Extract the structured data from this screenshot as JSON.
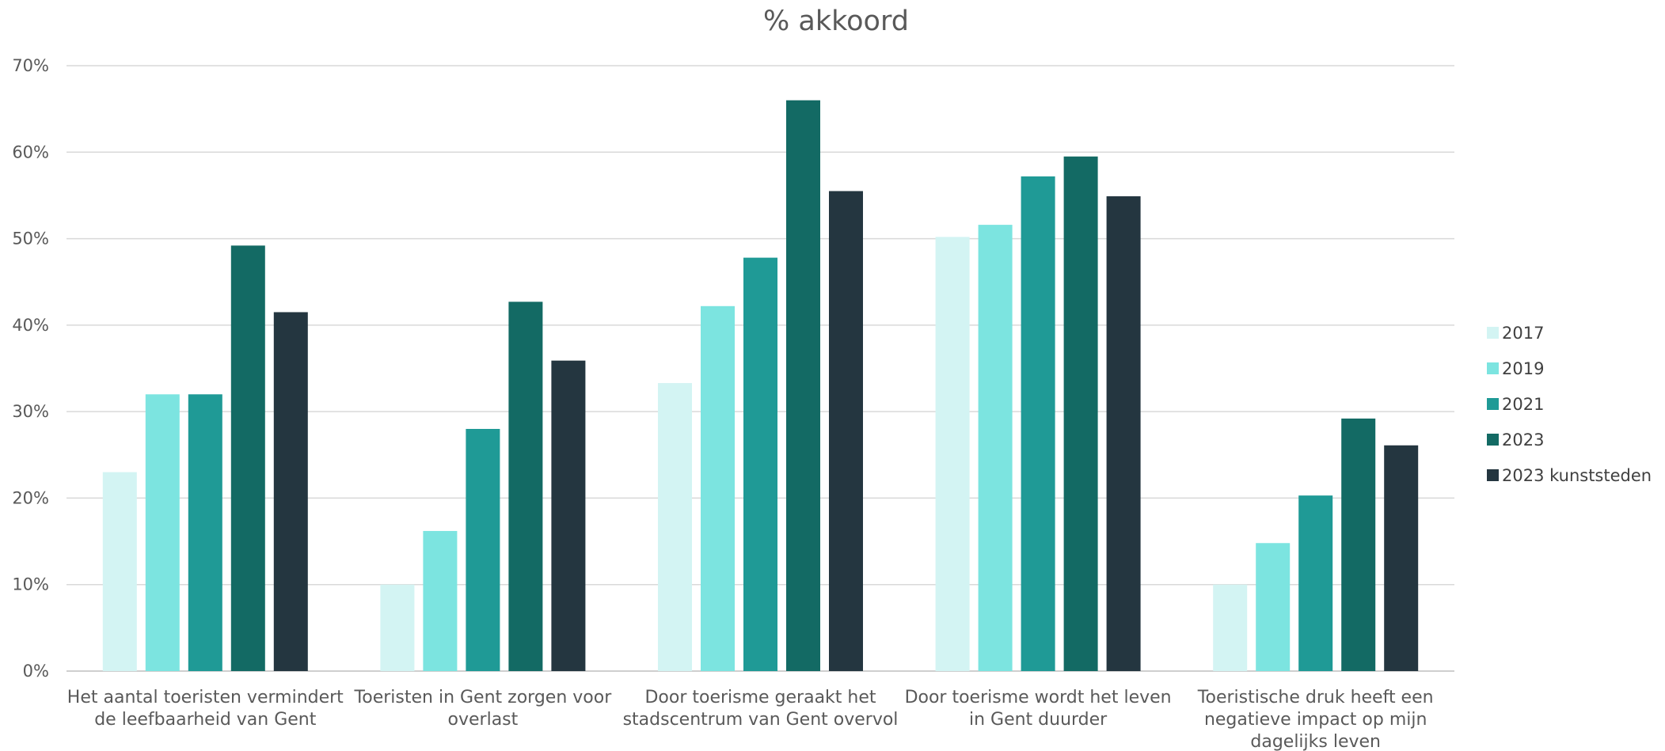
{
  "chart_data": {
    "type": "bar",
    "title": "% akkoord",
    "xlabel": "",
    "ylabel": "",
    "ylim": [
      0,
      70
    ],
    "yticks": [
      "0%",
      "10%",
      "20%",
      "30%",
      "40%",
      "50%",
      "60%",
      "70%"
    ],
    "grid": true,
    "legend_position": "right",
    "categories": [
      "Het aantal toeristen vermindert de leefbaarheid van Gent",
      "Toeristen in Gent zorgen voor overlast",
      "Door toerisme geraakt het stadscentrum van Gent overvol",
      "Door toerisme wordt het leven in Gent duurder",
      "Toeristische druk heeft een negatieve impact op mijn dagelijks leven"
    ],
    "category_lines": [
      [
        "Het aantal toeristen vermindert",
        "de leefbaarheid van Gent"
      ],
      [
        "Toeristen in Gent zorgen voor",
        "overlast"
      ],
      [
        "Door toerisme geraakt het",
        "stadscentrum van Gent overvol"
      ],
      [
        "Door toerisme wordt het leven",
        "in Gent duurder"
      ],
      [
        "Toeristische druk heeft een",
        "negatieve impact op mijn",
        "dagelijks leven"
      ]
    ],
    "series": [
      {
        "name": "2017",
        "color": "#d3f4f3",
        "values": [
          23,
          10,
          33.3,
          50.2,
          10
        ]
      },
      {
        "name": "2019",
        "color": "#7ce4e0",
        "values": [
          32,
          16.2,
          42.2,
          51.6,
          14.8
        ]
      },
      {
        "name": "2021",
        "color": "#1f9a96",
        "values": [
          32,
          28,
          47.8,
          57.2,
          20.3
        ]
      },
      {
        "name": "2023",
        "color": "#136a64",
        "values": [
          49.2,
          42.7,
          66,
          59.5,
          29.2
        ]
      },
      {
        "name": "2023 kunststeden",
        "color": "#243640",
        "values": [
          41.5,
          35.9,
          55.5,
          54.9,
          26.1
        ]
      }
    ]
  }
}
